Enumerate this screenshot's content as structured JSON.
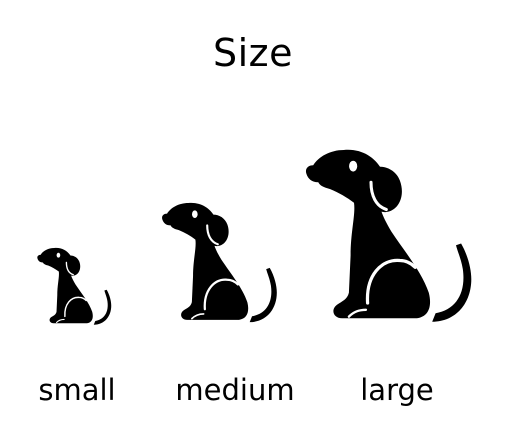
{
  "title": "Size",
  "dogs": [
    {
      "label": "small",
      "icon": "dog-silhouette-icon"
    },
    {
      "label": "medium",
      "icon": "dog-silhouette-icon"
    },
    {
      "label": "large",
      "icon": "dog-silhouette-icon"
    }
  ],
  "colors": {
    "background": "#ffffff",
    "foreground": "#000000"
  }
}
